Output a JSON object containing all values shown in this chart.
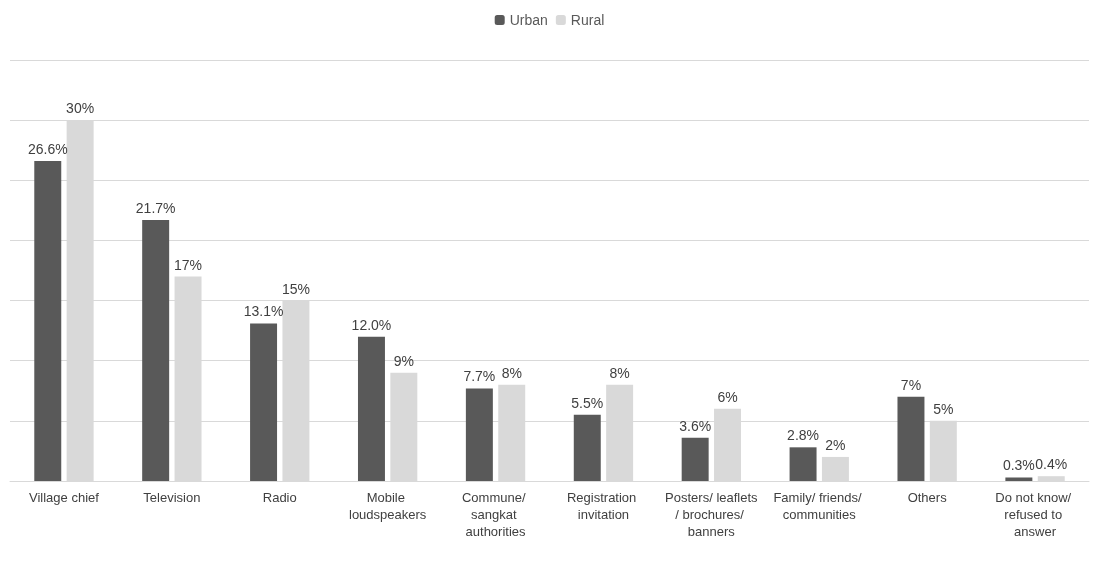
{
  "chart_data": {
    "type": "bar",
    "categories": [
      "Village chief",
      "Television",
      "Radio",
      "Mobile loudspeakers",
      "Commune/ sangkat authorities",
      "Registration invitation",
      "Posters/ leaflets/ brochures/ banners",
      "Family/ friends/ communities",
      "Others",
      "Do not know/ refused to answer"
    ],
    "series": [
      {
        "name": "Urban",
        "color": "#595959",
        "values": [
          26.6,
          21.7,
          13.1,
          12.0,
          7.7,
          5.5,
          3.6,
          2.8,
          7,
          0.3
        ],
        "value_labels": [
          "26.6%",
          "21.7%",
          "13.1%",
          "12.0%",
          "7.7%",
          "5.5%",
          "3.6%",
          "2.8%",
          "7%",
          "0.3%"
        ]
      },
      {
        "name": "Rural",
        "color": "#d9d9d9",
        "values": [
          30,
          17,
          15,
          9,
          8,
          8,
          6,
          2,
          5,
          0.4
        ],
        "value_labels": [
          "30%",
          "17%",
          "15%",
          "9%",
          "8%",
          "8%",
          "6%",
          "2%",
          "5%",
          "0.4%"
        ]
      }
    ],
    "ylim": [
      0,
      35
    ],
    "yticks": [
      0,
      5,
      10,
      15,
      20,
      25,
      30,
      35
    ],
    "tick_labels": "x",
    "grid": "y",
    "legend": "top"
  }
}
